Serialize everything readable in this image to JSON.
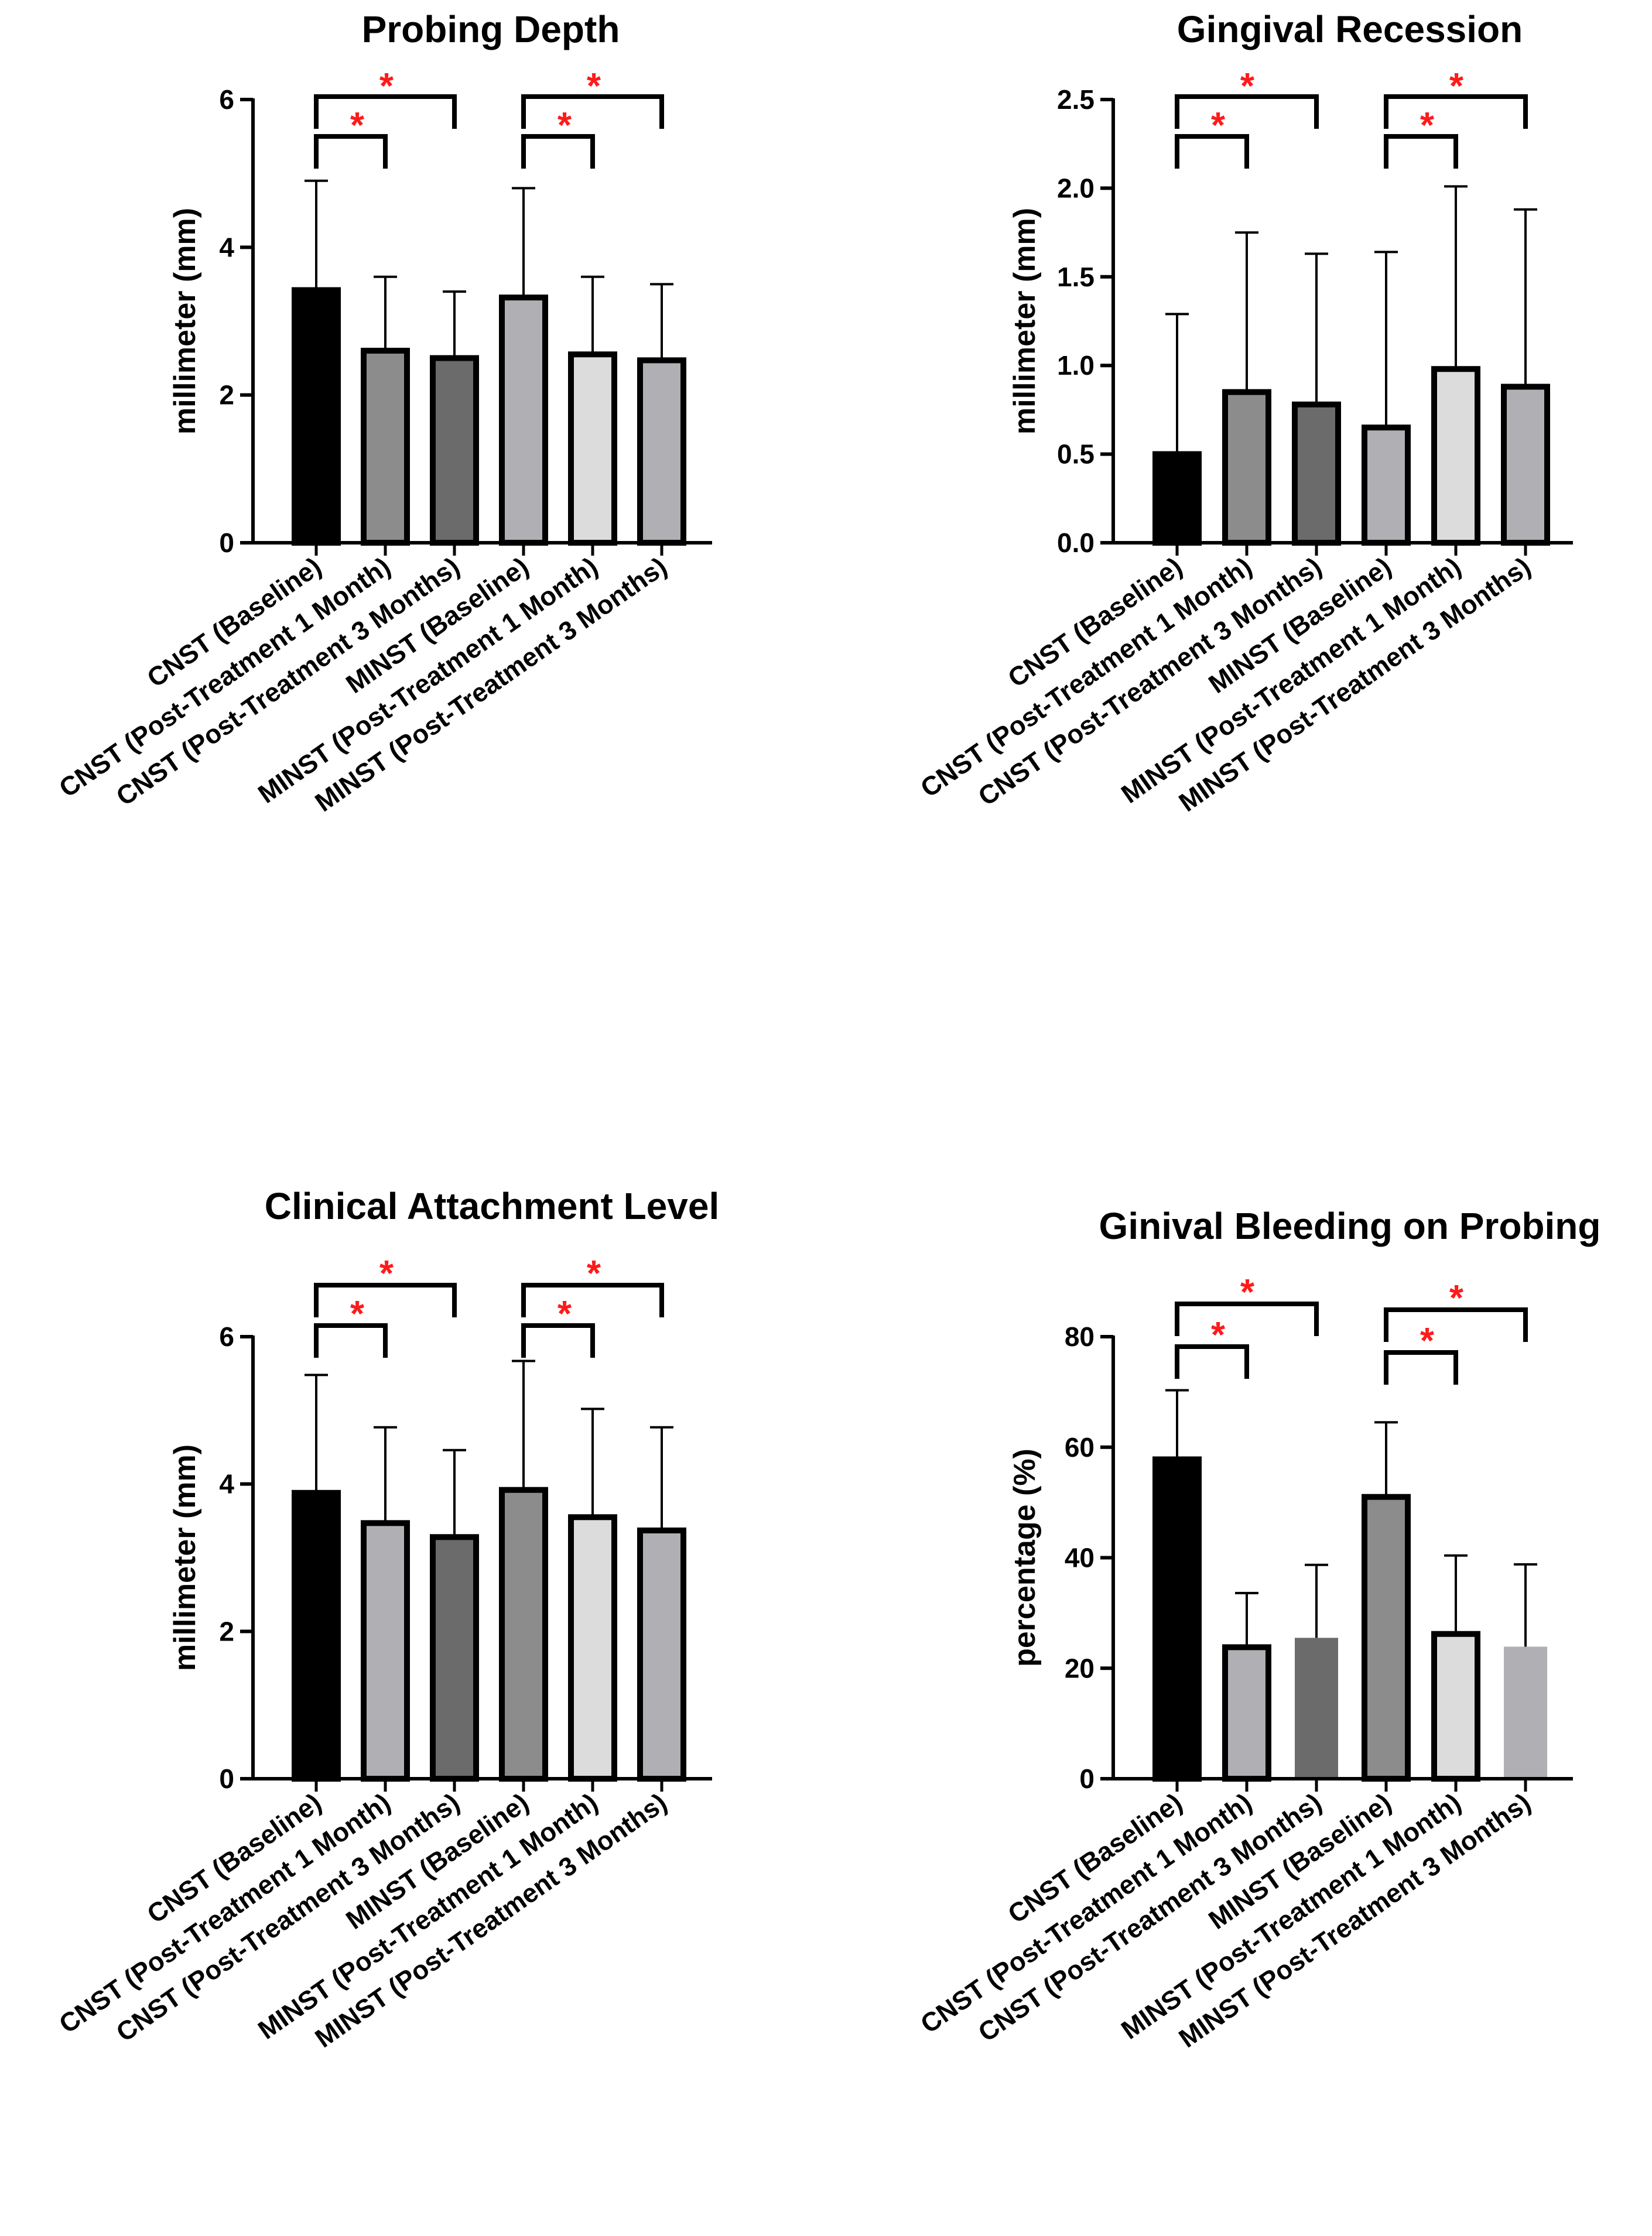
{
  "chart_data": [
    {
      "type": "bar",
      "title": "Probing Depth",
      "xlabel": "",
      "ylabel": "millimeter (mm)",
      "ylim": [
        0,
        6
      ],
      "yticks": [
        "0",
        "2",
        "4",
        "6"
      ],
      "ytick_values": [
        0,
        2,
        4,
        6
      ],
      "categories": [
        "CNST (Baseline)",
        "CNST (Post-Treatment 1 Month)",
        "CNST (Post-Treatment 3 Months)",
        "MINST (Baseline)",
        "MINST (Post-Treatment 1 Month)",
        "MINST (Post-Treatment 3 Months)"
      ],
      "values": [
        3.42,
        2.6,
        2.5,
        3.32,
        2.55,
        2.47
      ],
      "errors_upper": [
        4.9,
        3.6,
        3.4,
        4.8,
        3.6,
        3.5
      ],
      "colors": [
        "#000000",
        "#8c8c8c",
        "#6b6b6b",
        "#b0b0b4",
        "#dcdcdc",
        "#b0b0b4"
      ],
      "significance": [
        {
          "from": 0,
          "to": 1,
          "label": "*"
        },
        {
          "from": 0,
          "to": 2,
          "label": "*"
        },
        {
          "from": 3,
          "to": 4,
          "label": "*"
        },
        {
          "from": 3,
          "to": 5,
          "label": "*"
        }
      ]
    },
    {
      "type": "bar",
      "title": "Gingival Recession",
      "xlabel": "",
      "ylabel": "millimeter (mm)",
      "ylim": [
        0,
        2.5
      ],
      "yticks": [
        "0.0",
        "0.5",
        "1.0",
        "1.5",
        "2.0",
        "2.5"
      ],
      "ytick_values": [
        0,
        0.5,
        1.0,
        1.5,
        2.0,
        2.5
      ],
      "categories": [
        "CNST (Baseline)",
        "CNST (Post-Treatment 1 Month)",
        "CNST (Post-Treatment 3 Months)",
        "MINST (Baseline)",
        "MINST (Post-Treatment 1 Month)",
        "MINST (Post-Treatment 3 Months)"
      ],
      "values": [
        0.5,
        0.85,
        0.78,
        0.65,
        0.98,
        0.88
      ],
      "errors_upper": [
        1.29,
        1.75,
        1.63,
        1.64,
        2.01,
        1.88
      ],
      "colors": [
        "#000000",
        "#8c8c8c",
        "#6b6b6b",
        "#b0b0b4",
        "#dcdcdc",
        "#b0b0b4"
      ],
      "significance": [
        {
          "from": 0,
          "to": 1,
          "label": "*"
        },
        {
          "from": 0,
          "to": 2,
          "label": "*"
        },
        {
          "from": 3,
          "to": 4,
          "label": "*"
        },
        {
          "from": 3,
          "to": 5,
          "label": "*"
        }
      ]
    },
    {
      "type": "bar",
      "title": "Clinical Attachment Level",
      "xlabel": "",
      "ylabel": "millimeter (mm)",
      "ylim": [
        0,
        6
      ],
      "yticks": [
        "0",
        "2",
        "4",
        "6"
      ],
      "ytick_values": [
        0,
        2,
        4,
        6
      ],
      "categories": [
        "CNST (Baseline)",
        "CNST (Post-Treatment 1 Month)",
        "CNST (Post-Treatment 3 Months)",
        "MINST (Baseline)",
        "MINST (Post-Treatment 1 Month)",
        "MINST (Post-Treatment 3 Months)"
      ],
      "values": [
        3.88,
        3.47,
        3.28,
        3.92,
        3.55,
        3.37
      ],
      "errors_upper": [
        5.48,
        4.77,
        4.46,
        5.67,
        5.02,
        4.77
      ],
      "colors": [
        "#000000",
        "#b0b0b4",
        "#6b6b6b",
        "#8c8c8c",
        "#dcdcdc",
        "#b0b0b4"
      ],
      "significance": [
        {
          "from": 0,
          "to": 1,
          "label": "*"
        },
        {
          "from": 0,
          "to": 2,
          "label": "*"
        },
        {
          "from": 3,
          "to": 4,
          "label": "*"
        },
        {
          "from": 3,
          "to": 5,
          "label": "*"
        }
      ]
    },
    {
      "type": "bar",
      "title": "Ginival Bleeding on Probing",
      "xlabel": "",
      "ylabel": "percentage (%)",
      "ylim": [
        0,
        80
      ],
      "yticks": [
        "0",
        "20",
        "40",
        "60",
        "80"
      ],
      "ytick_values": [
        0,
        20,
        40,
        60,
        80
      ],
      "categories": [
        "CNST (Baseline)",
        "CNST (Post-Treatment 1 Month)",
        "CNST (Post-Treatment 3 Months)",
        "MINST (Baseline)",
        "MINST (Post-Treatment 1 Month)",
        "MINST (Post-Treatment 3 Months)"
      ],
      "values": [
        57.8,
        23.8,
        25.5,
        51.0,
        26.2,
        23.9
      ],
      "errors_upper": [
        70.3,
        33.6,
        38.7,
        64.5,
        40.4,
        38.8
      ],
      "colors": [
        "#000000",
        "#b0b0b4",
        "#6b6b6b",
        "#8c8c8c",
        "#dcdcdc",
        "#b0b0b4"
      ],
      "significance": [
        {
          "from": 0,
          "to": 1,
          "label": "*"
        },
        {
          "from": 0,
          "to": 2,
          "label": "*"
        },
        {
          "from": 3,
          "to": 4,
          "label": "*"
        },
        {
          "from": 3,
          "to": 5,
          "label": "*"
        }
      ]
    }
  ]
}
